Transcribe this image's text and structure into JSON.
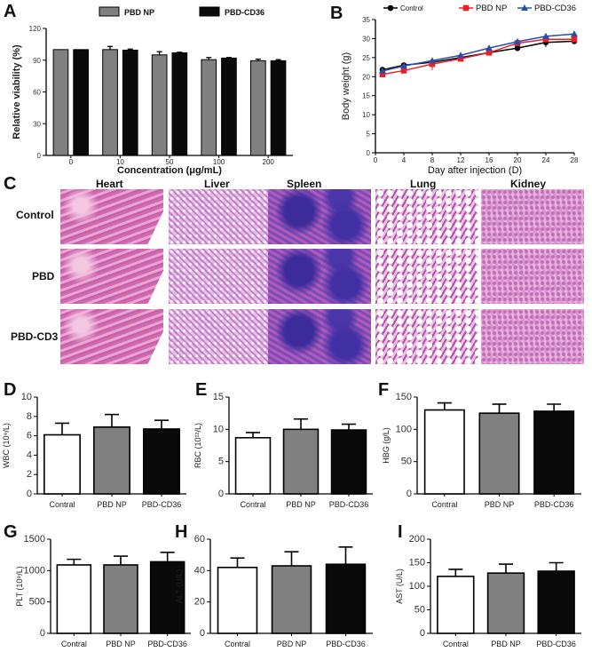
{
  "panel_letters": [
    "A",
    "B",
    "C",
    "D",
    "E",
    "F",
    "G",
    "H",
    "I"
  ],
  "histology": {
    "columns": [
      "Heart",
      "Liver",
      "Spleen",
      "Lung",
      "Kidney"
    ],
    "rows": [
      "Control",
      "PBD",
      "PBD-CD3"
    ]
  },
  "colors": {
    "gray": "#808080",
    "black": "#0a0a0a",
    "white": "#ffffff",
    "control": "#000000",
    "pbd_np": "#e8202a",
    "pbd_cd36": "#2a4fa8"
  },
  "chart_data": [
    {
      "id": "A",
      "type": "bar",
      "xlabel": "Concentration (μg/mL)",
      "ylabel": "Relative viability (%)",
      "ylim": [
        0,
        120
      ],
      "yticks": [
        0,
        30,
        60,
        90,
        120
      ],
      "categories": [
        "0",
        "10",
        "50",
        "100",
        "200"
      ],
      "legend": "top",
      "series": [
        {
          "name": "PBD NP",
          "color": "#808080",
          "values": [
            100,
            100,
            95,
            90.5,
            89.5
          ],
          "errors": [
            0,
            3,
            3,
            2,
            1.5
          ]
        },
        {
          "name": "PBD-CD36",
          "color": "#0a0a0a",
          "values": [
            100,
            99.5,
            97,
            92,
            89.5
          ],
          "errors": [
            0,
            1,
            0.5,
            0.5,
            1
          ]
        }
      ]
    },
    {
      "id": "B",
      "type": "line",
      "xlabel": "Day after injection (D)",
      "ylabel": "Body weight (g)",
      "ylim": [
        0,
        35
      ],
      "yticks": [
        0,
        5,
        10,
        15,
        20,
        25,
        30,
        35
      ],
      "xlim": [
        0,
        28
      ],
      "xticks": [
        0,
        4,
        8,
        12,
        16,
        20,
        24,
        28
      ],
      "x": [
        1,
        4,
        8,
        12,
        16,
        20,
        24,
        28
      ],
      "legend": "top",
      "series": [
        {
          "name": "Control",
          "color": "#000000",
          "marker": "circle",
          "values": [
            21.8,
            23,
            23.8,
            25,
            26.3,
            27.5,
            29,
            29.3
          ],
          "errors": [
            0.8,
            0.5,
            0.4,
            0.4,
            0.4,
            0.8,
            1.2,
            0.6
          ]
        },
        {
          "name": "PBD NP",
          "color": "#e8202a",
          "marker": "square",
          "values": [
            20.6,
            21.6,
            23.3,
            24.7,
            26.3,
            28.8,
            29.8,
            29.8
          ],
          "errors": [
            0.6,
            0.6,
            1.6,
            0.6,
            0.5,
            0.6,
            0.5,
            0.5
          ]
        },
        {
          "name": "PBD-CD36",
          "color": "#2a4fa8",
          "marker": "triangle",
          "values": [
            21.5,
            22.8,
            24.2,
            25.6,
            27.5,
            29.2,
            30.6,
            31.2
          ],
          "errors": [
            0.5,
            0.5,
            0.5,
            0.5,
            0.6,
            0.5,
            0.6,
            0.5
          ]
        }
      ]
    },
    {
      "id": "D",
      "type": "bar",
      "ylabel": "WBC (10⁹/L)",
      "ylim": [
        0,
        10
      ],
      "yticks": [
        0,
        2,
        4,
        6,
        8,
        10
      ],
      "categories": [
        "Contral",
        "PBD NP",
        "PBD-CD36"
      ],
      "values": [
        6.1,
        6.9,
        6.7
      ],
      "errors": [
        1.2,
        1.3,
        0.9
      ]
    },
    {
      "id": "E",
      "type": "bar",
      "ylabel": "RBC (10¹²/L)",
      "ylim": [
        0,
        15
      ],
      "yticks": [
        0,
        5,
        10,
        15
      ],
      "categories": [
        "Contral",
        "PBD NP",
        "PBD-CD36"
      ],
      "values": [
        8.7,
        10,
        9.9
      ],
      "errors": [
        0.8,
        1.6,
        0.9
      ]
    },
    {
      "id": "F",
      "type": "bar",
      "ylabel": "HBG (g/L)",
      "ylim": [
        0,
        150
      ],
      "yticks": [
        0,
        50,
        100,
        150
      ],
      "categories": [
        "Contral",
        "PBD NP",
        "PBD-CD36"
      ],
      "values": [
        130,
        125,
        128
      ],
      "errors": [
        11,
        14,
        11
      ]
    },
    {
      "id": "G",
      "type": "bar",
      "ylabel": "PLT (10⁹/L)",
      "ylim": [
        0,
        1500
      ],
      "yticks": [
        0,
        500,
        1000,
        1500
      ],
      "categories": [
        "Contral",
        "PBD NP",
        "PBD-CD36"
      ],
      "values": [
        1090,
        1090,
        1140
      ],
      "errors": [
        90,
        140,
        150
      ]
    },
    {
      "id": "H",
      "type": "bar",
      "ylabel": "ALT (U/L)",
      "ylim": [
        0,
        60
      ],
      "yticks": [
        0,
        20,
        40,
        60
      ],
      "categories": [
        "Contral",
        "PBD NP",
        "PBD-CD36"
      ],
      "values": [
        42,
        43,
        44
      ],
      "errors": [
        6,
        9,
        11
      ]
    },
    {
      "id": "I",
      "type": "bar",
      "ylabel": "AST (U/L)",
      "ylim": [
        0,
        200
      ],
      "yticks": [
        0,
        50,
        100,
        150,
        200
      ],
      "categories": [
        "Contral",
        "PBD NP",
        "PBD-CD36"
      ],
      "values": [
        121,
        128,
        132
      ],
      "errors": [
        15,
        19,
        18
      ]
    }
  ]
}
